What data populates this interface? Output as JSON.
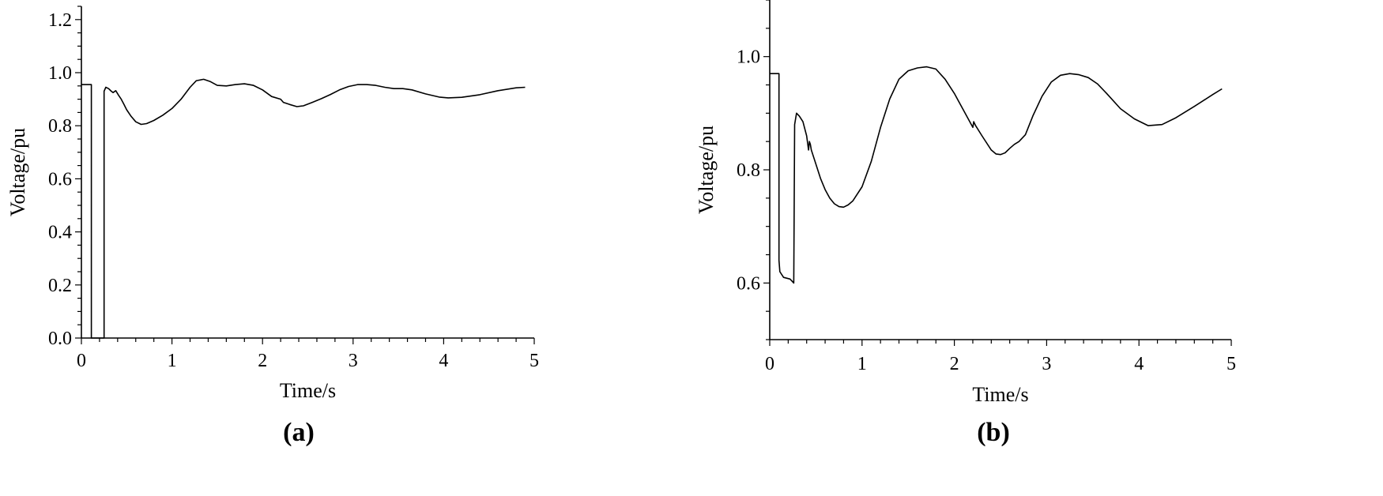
{
  "chart_data": [
    {
      "type": "line",
      "panel_label": "(a)",
      "xlabel": "Time/s",
      "ylabel": "Voltage/pu",
      "xlim": [
        0,
        5
      ],
      "ylim": [
        0,
        1.25
      ],
      "xticks": [
        "0",
        "1",
        "2",
        "3",
        "4",
        "5"
      ],
      "yticks": [
        "0.0",
        "0.2",
        "0.4",
        "0.6",
        "0.8",
        "1.0",
        "1.2"
      ],
      "grid": false,
      "series": [
        {
          "x": [
            0,
            0.11,
            0.11,
            0.25,
            0.25,
            0.27,
            0.3,
            0.33,
            0.35,
            0.38,
            0.41,
            0.44,
            0.47,
            0.5,
            0.55,
            0.6,
            0.66,
            0.72,
            0.8,
            0.9,
            1.0,
            1.1,
            1.2,
            1.27,
            1.35,
            1.42,
            1.5,
            1.6,
            1.7,
            1.8,
            1.9,
            2.0,
            2.1,
            2.2,
            2.23,
            2.3,
            2.38,
            2.45,
            2.55,
            2.65,
            2.75,
            2.85,
            2.95,
            3.05,
            3.15,
            3.25,
            3.35,
            3.45,
            3.55,
            3.65,
            3.8,
            3.95,
            4.05,
            4.2,
            4.4,
            4.6,
            4.8,
            4.9
          ],
          "y": [
            0.955,
            0.955,
            0.0,
            0.0,
            0.93,
            0.945,
            0.94,
            0.93,
            0.925,
            0.932,
            0.915,
            0.9,
            0.88,
            0.86,
            0.835,
            0.815,
            0.805,
            0.808,
            0.82,
            0.84,
            0.865,
            0.9,
            0.945,
            0.97,
            0.975,
            0.967,
            0.952,
            0.95,
            0.955,
            0.958,
            0.952,
            0.935,
            0.91,
            0.9,
            0.888,
            0.88,
            0.872,
            0.875,
            0.888,
            0.902,
            0.918,
            0.935,
            0.948,
            0.955,
            0.955,
            0.952,
            0.945,
            0.94,
            0.94,
            0.935,
            0.92,
            0.908,
            0.905,
            0.907,
            0.917,
            0.932,
            0.943,
            0.945
          ]
        }
      ]
    },
    {
      "type": "line",
      "panel_label": "(b)",
      "xlabel": "Time/s",
      "ylabel": "Voltage/pu",
      "xlim": [
        0,
        5
      ],
      "ylim": [
        0.5,
        1.1
      ],
      "xticks": [
        "0",
        "1",
        "2",
        "3",
        "4",
        "5"
      ],
      "yticks": [
        "0.6",
        "0.8",
        "1.0"
      ],
      "grid": false,
      "series": [
        {
          "x": [
            0,
            0.1,
            0.1,
            0.11,
            0.15,
            0.22,
            0.26,
            0.27,
            0.29,
            0.32,
            0.36,
            0.4,
            0.42,
            0.43,
            0.44,
            0.45,
            0.5,
            0.55,
            0.6,
            0.65,
            0.7,
            0.75,
            0.8,
            0.85,
            0.9,
            1.0,
            1.1,
            1.2,
            1.3,
            1.4,
            1.5,
            1.6,
            1.7,
            1.8,
            1.9,
            2.0,
            2.1,
            2.2,
            2.21,
            2.23,
            2.3,
            2.4,
            2.45,
            2.5,
            2.55,
            2.6,
            2.65,
            2.7,
            2.77,
            2.85,
            2.95,
            3.05,
            3.15,
            3.25,
            3.35,
            3.45,
            3.55,
            3.65,
            3.8,
            3.95,
            4.1,
            4.25,
            4.4,
            4.6,
            4.8,
            4.9
          ],
          "y": [
            0.97,
            0.97,
            0.64,
            0.62,
            0.61,
            0.607,
            0.6,
            0.88,
            0.9,
            0.895,
            0.885,
            0.86,
            0.835,
            0.85,
            0.845,
            0.835,
            0.81,
            0.785,
            0.765,
            0.75,
            0.74,
            0.735,
            0.734,
            0.738,
            0.745,
            0.77,
            0.815,
            0.875,
            0.925,
            0.96,
            0.975,
            0.98,
            0.982,
            0.978,
            0.96,
            0.935,
            0.905,
            0.875,
            0.885,
            0.878,
            0.86,
            0.835,
            0.828,
            0.827,
            0.83,
            0.838,
            0.845,
            0.85,
            0.862,
            0.895,
            0.93,
            0.955,
            0.967,
            0.97,
            0.968,
            0.963,
            0.952,
            0.935,
            0.908,
            0.89,
            0.878,
            0.88,
            0.892,
            0.912,
            0.933,
            0.943
          ]
        }
      ]
    }
  ]
}
